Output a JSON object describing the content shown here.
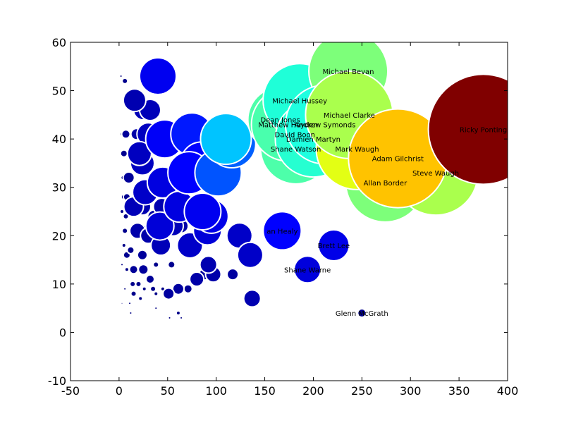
{
  "chart_data": {
    "type": "scatter",
    "title": "",
    "xlabel": "",
    "ylabel": "",
    "xlim": [
      -50,
      400
    ],
    "ylim": [
      -10,
      60
    ],
    "xticks": [
      "-50",
      "0",
      "50",
      "100",
      "150",
      "200",
      "250",
      "300",
      "350",
      "400"
    ],
    "yticks": [
      "-10",
      "0",
      "10",
      "20",
      "30",
      "40",
      "50",
      "60"
    ],
    "grid": false,
    "legend": "none",
    "size_encoding": "bubble area scales with value",
    "color_encoding": "jet colormap by bubble size",
    "labeled_points": [
      {
        "name": "Ricky Ponting",
        "x": 375,
        "y": 42,
        "r": 78,
        "color": "#800000"
      },
      {
        "name": "Adam Gilchrist",
        "x": 287,
        "y": 36,
        "r": 70,
        "color": "#ffc300"
      },
      {
        "name": "Steve Waugh",
        "x": 326,
        "y": 33,
        "r": 60,
        "color": "#aaff4d"
      },
      {
        "name": "Allan Border",
        "x": 274,
        "y": 31,
        "r": 56,
        "color": "#7dff7a"
      },
      {
        "name": "Michael Bevan",
        "x": 236,
        "y": 54,
        "r": 56,
        "color": "#7dff7a"
      },
      {
        "name": "Mark Waugh",
        "x": 245,
        "y": 38,
        "r": 58,
        "color": "#e3ff14"
      },
      {
        "name": "Michael Clarke",
        "x": 237,
        "y": 45,
        "r": 62,
        "color": "#aaff4d"
      },
      {
        "name": "Damien Martyn",
        "x": 200,
        "y": 40,
        "r": 54,
        "color": "#26ffd1"
      },
      {
        "name": "Andrew Symonds",
        "x": 212,
        "y": 43,
        "r": 56,
        "color": "#1fffe0"
      },
      {
        "name": "Matthew Hayden",
        "x": 174,
        "y": 43,
        "r": 52,
        "color": "#49ffad"
      },
      {
        "name": "Shane Watson",
        "x": 182,
        "y": 38,
        "r": 50,
        "color": "#4dffaa"
      },
      {
        "name": "Dean Jones",
        "x": 166,
        "y": 44,
        "r": 46,
        "color": "#4dffaa"
      },
      {
        "name": "David Boon",
        "x": 181,
        "y": 41,
        "r": 48,
        "color": "#1fffd8"
      },
      {
        "name": "Michael Hussey",
        "x": 186,
        "y": 48,
        "r": 52,
        "color": "#1fffd8"
      },
      {
        "name": "Ian Healy",
        "x": 168,
        "y": 21,
        "r": 27,
        "color": "#0000ff"
      },
      {
        "name": "Brett Lee",
        "x": 221,
        "y": 18,
        "r": 22,
        "color": "#0000e8"
      },
      {
        "name": "Shane Warne",
        "x": 194,
        "y": 13,
        "r": 19,
        "color": "#0000dc"
      },
      {
        "name": "Glenn McGrath",
        "x": 250,
        "y": 4,
        "r": 6,
        "color": "#00008f"
      }
    ],
    "labels_display": {
      "Ricky Ponting": "Ricky Ponting",
      "Adam Gilchrist": "Adam Gilchrist",
      "Steve Waugh": "Steve Waugh",
      "Allan Border": "Allan Border",
      "Michael Bevan": "Michael Bevan",
      "Mark Waugh": "Mark Waugh",
      "Michael Clarke": "Michael Clarke",
      "Damien Martyn": "Damien Martyn",
      "Andrew Symonds": "Andrew Symonds",
      "Matthew Hayden": "Matthew Hayden",
      "Shane Watson": "Shane Watson",
      "Dean Jones": "Dean Jones",
      "David Boon": "David Boon",
      "Michael Hussey": "Michael Hussey",
      "Ian Healy": "an Healy",
      "Brett Lee": "Brett Lee",
      "Shane Warne": "Shane Warne",
      "Glenn McGrath": "Glenn McGrath"
    },
    "unlabeled_points": [
      {
        "x": 40,
        "y": 53,
        "r": 26,
        "color": "#0000f0"
      },
      {
        "x": 16,
        "y": 48,
        "r": 16,
        "color": "#0000b0"
      },
      {
        "x": 32,
        "y": 46,
        "r": 15,
        "color": "#0000b8"
      },
      {
        "x": 25,
        "y": 46,
        "r": 14,
        "color": "#0000b8"
      },
      {
        "x": 75,
        "y": 41,
        "r": 30,
        "color": "#0018ff"
      },
      {
        "x": 47,
        "y": 40,
        "r": 27,
        "color": "#0000f8"
      },
      {
        "x": 30,
        "y": 41,
        "r": 16,
        "color": "#0000c0"
      },
      {
        "x": 18,
        "y": 41,
        "r": 8,
        "color": "#0000a8"
      },
      {
        "x": 7,
        "y": 41,
        "r": 6,
        "color": "#00009a"
      },
      {
        "x": 110,
        "y": 40,
        "r": 36,
        "color": "#00c4ff"
      },
      {
        "x": 116,
        "y": 39,
        "r": 34,
        "color": "#0060ff"
      },
      {
        "x": 85,
        "y": 35,
        "r": 30,
        "color": "#0000ff"
      },
      {
        "x": 102,
        "y": 33,
        "r": 33,
        "color": "#0054ff"
      },
      {
        "x": 72,
        "y": 33,
        "r": 30,
        "color": "#0000ff"
      },
      {
        "x": 45,
        "y": 31,
        "r": 22,
        "color": "#0000e0"
      },
      {
        "x": 24,
        "y": 35,
        "r": 17,
        "color": "#0000c0"
      },
      {
        "x": 21,
        "y": 37,
        "r": 17,
        "color": "#0000c0"
      },
      {
        "x": 27,
        "y": 29,
        "r": 18,
        "color": "#0000c8"
      },
      {
        "x": 10,
        "y": 32,
        "r": 8,
        "color": "#00009a"
      },
      {
        "x": 5,
        "y": 37,
        "r": 5,
        "color": "#000090"
      },
      {
        "x": 62,
        "y": 26,
        "r": 22,
        "color": "#0000e0"
      },
      {
        "x": 86,
        "y": 25,
        "r": 26,
        "color": "#0000f0"
      },
      {
        "x": 95,
        "y": 24,
        "r": 24,
        "color": "#0000e8"
      },
      {
        "x": 91,
        "y": 21,
        "r": 20,
        "color": "#0000d8"
      },
      {
        "x": 42,
        "y": 22,
        "r": 20,
        "color": "#0000d8"
      },
      {
        "x": 56,
        "y": 22,
        "r": 14,
        "color": "#0000b8"
      },
      {
        "x": 15,
        "y": 26,
        "r": 14,
        "color": "#0000b8"
      },
      {
        "x": 24,
        "y": 26,
        "r": 12,
        "color": "#0000b0"
      },
      {
        "x": 19,
        "y": 21,
        "r": 11,
        "color": "#0000aa"
      },
      {
        "x": 30,
        "y": 20,
        "r": 11,
        "color": "#0000aa"
      },
      {
        "x": 43,
        "y": 18,
        "r": 14,
        "color": "#0000b8"
      },
      {
        "x": 73,
        "y": 18,
        "r": 18,
        "color": "#0000c8"
      },
      {
        "x": 124,
        "y": 20,
        "r": 18,
        "color": "#0000c8"
      },
      {
        "x": 135,
        "y": 16,
        "r": 18,
        "color": "#0000c8"
      },
      {
        "x": 92,
        "y": 14,
        "r": 12,
        "color": "#0000b0"
      },
      {
        "x": 97,
        "y": 12,
        "r": 11,
        "color": "#0000aa"
      },
      {
        "x": 80,
        "y": 11,
        "r": 10,
        "color": "#0000a8"
      },
      {
        "x": 88,
        "y": 12,
        "r": 8,
        "color": "#0000a0"
      },
      {
        "x": 117,
        "y": 12,
        "r": 8,
        "color": "#0000a0"
      },
      {
        "x": 137,
        "y": 7,
        "r": 12,
        "color": "#0000b0"
      },
      {
        "x": 61,
        "y": 9,
        "r": 8,
        "color": "#0000a0"
      },
      {
        "x": 51,
        "y": 8,
        "r": 8,
        "color": "#0000a0"
      },
      {
        "x": 71,
        "y": 9,
        "r": 6,
        "color": "#000098"
      },
      {
        "x": 25,
        "y": 13,
        "r": 7,
        "color": "#00009c"
      },
      {
        "x": 32,
        "y": 11,
        "r": 6,
        "color": "#000098"
      },
      {
        "x": 15,
        "y": 13,
        "r": 6,
        "color": "#000098"
      },
      {
        "x": 24,
        "y": 16,
        "r": 7,
        "color": "#00009c"
      },
      {
        "x": 14,
        "y": 10,
        "r": 4,
        "color": "#00008c"
      },
      {
        "x": 20,
        "y": 10,
        "r": 4,
        "color": "#00008c"
      },
      {
        "x": 26,
        "y": 9,
        "r": 3,
        "color": "#000088"
      },
      {
        "x": 35,
        "y": 9,
        "r": 4,
        "color": "#00008c"
      },
      {
        "x": 15,
        "y": 8,
        "r": 4,
        "color": "#00008c"
      },
      {
        "x": 22,
        "y": 7,
        "r": 3,
        "color": "#000088"
      },
      {
        "x": 11,
        "y": 6,
        "r": 2,
        "color": "#000084"
      },
      {
        "x": 38,
        "y": 14,
        "r": 4,
        "color": "#00008c"
      },
      {
        "x": 54,
        "y": 14,
        "r": 5,
        "color": "#000090"
      },
      {
        "x": 38,
        "y": 8,
        "r": 3,
        "color": "#000088"
      },
      {
        "x": 45,
        "y": 9,
        "r": 3,
        "color": "#000088"
      },
      {
        "x": 65,
        "y": 9,
        "r": 4,
        "color": "#00008c"
      },
      {
        "x": 61,
        "y": 4,
        "r": 3,
        "color": "#000088"
      },
      {
        "x": 64,
        "y": 3,
        "r": 2,
        "color": "#000084"
      },
      {
        "x": 52,
        "y": 3,
        "r": 2,
        "color": "#000084"
      },
      {
        "x": 38,
        "y": 5,
        "r": 2,
        "color": "#000084"
      },
      {
        "x": 12,
        "y": 4,
        "r": 2,
        "color": "#000084"
      },
      {
        "x": 8,
        "y": 13,
        "r": 3,
        "color": "#000088"
      },
      {
        "x": 8,
        "y": 16,
        "r": 5,
        "color": "#000090"
      },
      {
        "x": 12,
        "y": 17,
        "r": 5,
        "color": "#000090"
      },
      {
        "x": 5,
        "y": 18,
        "r": 3,
        "color": "#000088"
      },
      {
        "x": 6,
        "y": 21,
        "r": 4,
        "color": "#00008c"
      },
      {
        "x": 7,
        "y": 24,
        "r": 4,
        "color": "#00008c"
      },
      {
        "x": 5,
        "y": 28,
        "r": 4,
        "color": "#00008c"
      },
      {
        "x": 3,
        "y": 25,
        "r": 3,
        "color": "#000088"
      },
      {
        "x": 4,
        "y": 32,
        "r": 3,
        "color": "#000088"
      },
      {
        "x": 3,
        "y": 41,
        "r": 3,
        "color": "#000088"
      },
      {
        "x": 6,
        "y": 52,
        "r": 4,
        "color": "#00008c"
      },
      {
        "x": 2,
        "y": 53,
        "r": 2,
        "color": "#000084"
      },
      {
        "x": 8,
        "y": 28,
        "r": 5,
        "color": "#000090"
      },
      {
        "x": 3,
        "y": 14,
        "r": 2,
        "color": "#000084"
      },
      {
        "x": 6,
        "y": 9,
        "r": 2,
        "color": "#000084"
      },
      {
        "x": 3,
        "y": 6,
        "r": 1.5,
        "color": "#000080"
      },
      {
        "x": 4,
        "y": 2,
        "r": 1,
        "color": "#000080"
      },
      {
        "x": 2,
        "y": 1,
        "r": 1,
        "color": "#000080"
      },
      {
        "x": 30,
        "y": 21,
        "r": 9,
        "color": "#0000a8"
      },
      {
        "x": 36,
        "y": 24,
        "r": 9,
        "color": "#0000a8"
      },
      {
        "x": 44,
        "y": 26,
        "r": 12,
        "color": "#0000b0"
      },
      {
        "x": 52,
        "y": 27,
        "r": 10,
        "color": "#0000a8"
      },
      {
        "x": 64,
        "y": 22,
        "r": 10,
        "color": "#0000a8"
      }
    ]
  }
}
